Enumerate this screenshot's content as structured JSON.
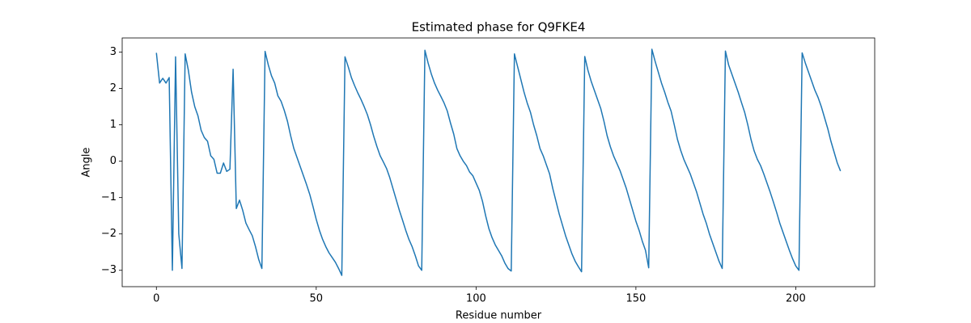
{
  "chart_data": {
    "type": "line",
    "title": "Estimated phase for Q9FKE4",
    "x_label": "Residue number",
    "y_label": "Angle",
    "color": "#1f77b4",
    "x": [
      0,
      1,
      2,
      3,
      4,
      5,
      6,
      7,
      8,
      9,
      10,
      11,
      12,
      13,
      14,
      15,
      16,
      17,
      18,
      19,
      20,
      21,
      22,
      23,
      24,
      25,
      26,
      27,
      28,
      29,
      30,
      31,
      32,
      33,
      34,
      35,
      36,
      37,
      38,
      39,
      40,
      41,
      42,
      43,
      44,
      45,
      46,
      47,
      48,
      49,
      50,
      51,
      52,
      53,
      54,
      55,
      56,
      57,
      58,
      59,
      60,
      61,
      62,
      63,
      64,
      65,
      66,
      67,
      68,
      69,
      70,
      71,
      72,
      73,
      74,
      75,
      76,
      77,
      78,
      79,
      80,
      81,
      82,
      83,
      84,
      85,
      86,
      87,
      88,
      89,
      90,
      91,
      92,
      93,
      94,
      95,
      96,
      97,
      98,
      99,
      100,
      101,
      102,
      103,
      104,
      105,
      106,
      107,
      108,
      109,
      110,
      111,
      112,
      113,
      114,
      115,
      116,
      117,
      118,
      119,
      120,
      121,
      122,
      123,
      124,
      125,
      126,
      127,
      128,
      129,
      130,
      131,
      132,
      133,
      134,
      135,
      136,
      137,
      138,
      139,
      140,
      141,
      142,
      143,
      144,
      145,
      146,
      147,
      148,
      149,
      150,
      151,
      152,
      153,
      154,
      155,
      156,
      157,
      158,
      159,
      160,
      161,
      162,
      163,
      164,
      165,
      166,
      167,
      168,
      169,
      170,
      171,
      172,
      173,
      174,
      175,
      176,
      177,
      178,
      179,
      180,
      181,
      182,
      183,
      184,
      185,
      186,
      187,
      188,
      189,
      190,
      191,
      192,
      193,
      194,
      195,
      196,
      197,
      198,
      199,
      200,
      201,
      202,
      203,
      204,
      205,
      206,
      207,
      208,
      209,
      210,
      211,
      212,
      213,
      214
    ],
    "values": [
      2.98,
      2.15,
      2.28,
      2.15,
      2.3,
      -3.0,
      2.87,
      -2.0,
      -2.95,
      2.95,
      2.5,
      1.9,
      1.5,
      1.25,
      0.85,
      0.65,
      0.55,
      0.15,
      0.05,
      -0.33,
      -0.33,
      -0.05,
      -0.28,
      -0.22,
      2.53,
      -1.3,
      -1.07,
      -1.35,
      -1.7,
      -1.88,
      -2.05,
      -2.35,
      -2.7,
      -2.95,
      3.02,
      2.65,
      2.35,
      2.15,
      1.8,
      1.65,
      1.4,
      1.1,
      0.7,
      0.35,
      0.1,
      -0.15,
      -0.4,
      -0.65,
      -0.92,
      -1.25,
      -1.6,
      -1.9,
      -2.15,
      -2.35,
      -2.52,
      -2.65,
      -2.78,
      -2.95,
      -3.14,
      2.87,
      2.6,
      2.3,
      2.08,
      1.88,
      1.7,
      1.5,
      1.28,
      1.0,
      0.68,
      0.4,
      0.15,
      -0.02,
      -0.2,
      -0.45,
      -0.75,
      -1.05,
      -1.35,
      -1.62,
      -1.9,
      -2.15,
      -2.35,
      -2.6,
      -2.88,
      -3.0,
      3.05,
      2.7,
      2.4,
      2.15,
      1.95,
      1.78,
      1.6,
      1.38,
      1.05,
      0.75,
      0.35,
      0.15,
      0.0,
      -0.12,
      -0.3,
      -0.4,
      -0.6,
      -0.8,
      -1.1,
      -1.5,
      -1.85,
      -2.1,
      -2.3,
      -2.45,
      -2.6,
      -2.8,
      -2.95,
      -3.02,
      2.95,
      2.6,
      2.25,
      1.9,
      1.6,
      1.35,
      1.0,
      0.7,
      0.35,
      0.15,
      -0.1,
      -0.35,
      -0.75,
      -1.1,
      -1.45,
      -1.75,
      -2.05,
      -2.3,
      -2.55,
      -2.75,
      -2.9,
      -3.04,
      2.88,
      2.5,
      2.2,
      1.95,
      1.7,
      1.45,
      1.1,
      0.7,
      0.4,
      0.15,
      -0.05,
      -0.25,
      -0.5,
      -0.75,
      -1.05,
      -1.35,
      -1.65,
      -1.9,
      -2.2,
      -2.45,
      -2.93,
      3.08,
      2.75,
      2.45,
      2.15,
      1.9,
      1.62,
      1.38,
      1.0,
      0.6,
      0.3,
      0.05,
      -0.15,
      -0.35,
      -0.6,
      -0.85,
      -1.15,
      -1.45,
      -1.7,
      -2.0,
      -2.25,
      -2.5,
      -2.75,
      -2.95,
      3.03,
      2.65,
      2.4,
      2.15,
      1.9,
      1.62,
      1.35,
      1.0,
      0.6,
      0.28,
      0.05,
      -0.12,
      -0.35,
      -0.6,
      -0.85,
      -1.12,
      -1.4,
      -1.7,
      -1.95,
      -2.2,
      -2.45,
      -2.68,
      -2.88,
      -3.0,
      2.98,
      2.7,
      2.45,
      2.2,
      1.95,
      1.75,
      1.5,
      1.2,
      0.9,
      0.55,
      0.25,
      -0.05,
      -0.27
    ],
    "xlim": [
      -10.7,
      224.7
    ],
    "ylim": [
      -3.45,
      3.39
    ],
    "xticks": [
      0,
      50,
      100,
      150,
      200
    ],
    "yticks": [
      {
        "value": -3,
        "label": "−3"
      },
      {
        "value": -2,
        "label": "−2"
      },
      {
        "value": -1,
        "label": "−1"
      },
      0,
      1,
      2,
      3
    ]
  }
}
